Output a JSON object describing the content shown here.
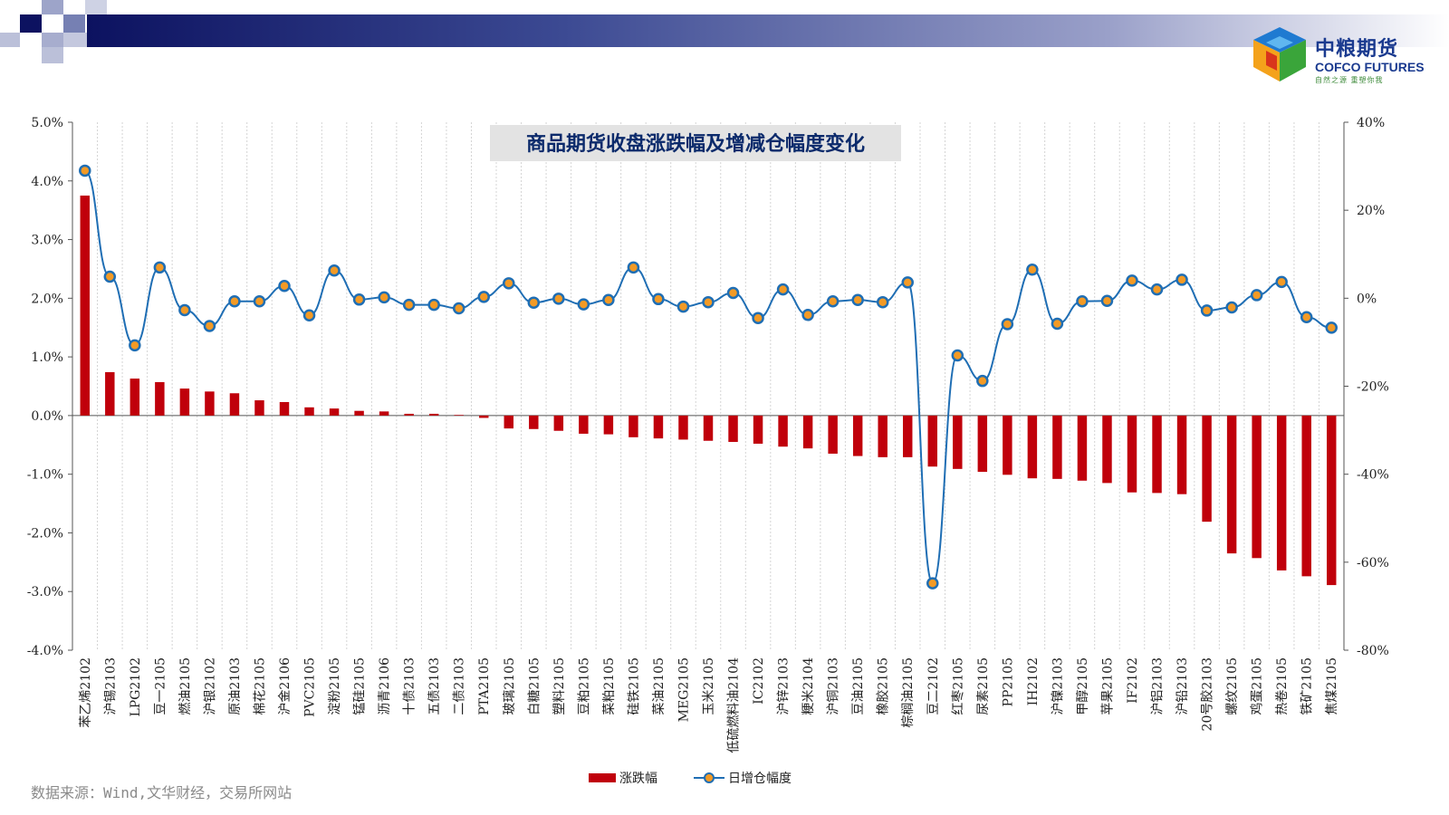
{
  "brand": {
    "name_cn": "中粮期货",
    "name_en": "COFCO FUTURES",
    "slogan": "自然之源 重塑你我"
  },
  "source_note": "数据来源：Wind,文华财经，交易所网站",
  "colors": {
    "bar": "#c0000b",
    "line": "#1f6eb4",
    "marker_fill": "#f39a25",
    "title_bg": "#e3e3e3",
    "title_text": "#0b2a6b",
    "header_dark": "#0c1260",
    "header_mid": "#3c4a93",
    "header_light": "#9aa0c9"
  },
  "chart_data": {
    "type": "bar+line",
    "title": "商品期货收盘涨跌幅及增减仓幅度变化",
    "categories": [
      "苯乙烯2102",
      "沪锡2103",
      "LPG2102",
      "豆一2105",
      "燃油2105",
      "沪银2102",
      "原油2103",
      "棉花2105",
      "沪金2106",
      "PVC2105",
      "淀粉2105",
      "锰硅2105",
      "沥青2106",
      "十债2103",
      "五债2103",
      "二债2103",
      "PTA2105",
      "玻璃2105",
      "白糖2105",
      "塑料2105",
      "豆粕2105",
      "菜粕2105",
      "硅铁2105",
      "菜油2105",
      "MEG2105",
      "玉米2105",
      "低硫燃料油2104",
      "IC2102",
      "沪锌2103",
      "粳米2104",
      "沪铜2103",
      "豆油2105",
      "橡胶2105",
      "棕榈油2105",
      "豆二2102",
      "红枣2105",
      "尿素2105",
      "PP2105",
      "IH2102",
      "沪镍2103",
      "甲醇2105",
      "苹果2105",
      "IF2102",
      "沪铝2103",
      "沪铅2103",
      "20号胶2103",
      "螺纹2105",
      "鸡蛋2105",
      "热卷2105",
      "铁矿2105",
      "焦煤2105"
    ],
    "series": [
      {
        "name": "涨跌幅",
        "type": "bar",
        "axis": "left",
        "unit": "%",
        "values": [
          3.75,
          0.74,
          0.63,
          0.57,
          0.46,
          0.41,
          0.38,
          0.26,
          0.23,
          0.14,
          0.12,
          0.08,
          0.07,
          0.03,
          0.03,
          0.01,
          -0.04,
          -0.22,
          -0.23,
          -0.26,
          -0.31,
          -0.32,
          -0.37,
          -0.39,
          -0.41,
          -0.43,
          -0.45,
          -0.48,
          -0.53,
          -0.56,
          -0.65,
          -0.69,
          -0.71,
          -0.71,
          -0.87,
          -0.91,
          -0.96,
          -1.01,
          -1.07,
          -1.08,
          -1.11,
          -1.15,
          -1.31,
          -1.32,
          -1.34,
          -1.81,
          -2.35,
          -2.43,
          -2.64,
          -2.74,
          -2.89
        ]
      },
      {
        "name": "日增仓幅度",
        "type": "line",
        "axis": "right",
        "unit": "%",
        "values": [
          29,
          4.9,
          -10.7,
          7,
          -2.7,
          -6.3,
          -0.7,
          -0.7,
          2.8,
          -3.9,
          6.3,
          -0.3,
          0.2,
          -1.5,
          -1.5,
          -2.3,
          0.3,
          3.4,
          -1.0,
          -0.1,
          -1.4,
          -0.4,
          7.0,
          -0.2,
          -1.9,
          -0.9,
          1.2,
          -4.5,
          2.0,
          -3.8,
          -0.7,
          -0.4,
          -0.9,
          3.6,
          -64.8,
          -13.0,
          -18.8,
          -5.9,
          6.5,
          -5.8,
          -0.7,
          -0.6,
          4.0,
          2.0,
          4.2,
          -2.8,
          -2.1,
          0.7,
          3.7,
          -4.3,
          -6.7
        ]
      }
    ],
    "left_axis": {
      "min": -4,
      "max": 5,
      "step": 1,
      "tick_labels": [
        "-4.0%",
        "-3.0%",
        "-2.0%",
        "-1.0%",
        "0.0%",
        "1.0%",
        "2.0%",
        "3.0%",
        "4.0%",
        "5.0%"
      ]
    },
    "right_axis": {
      "min": -80,
      "max": 40,
      "step": 20,
      "tick_labels": [
        "-80%",
        "-60%",
        "-40%",
        "-20%",
        "0%",
        "20%",
        "40%"
      ]
    },
    "grid": {
      "vertical": true,
      "horizontal": false
    },
    "legend_position": "bottom"
  }
}
